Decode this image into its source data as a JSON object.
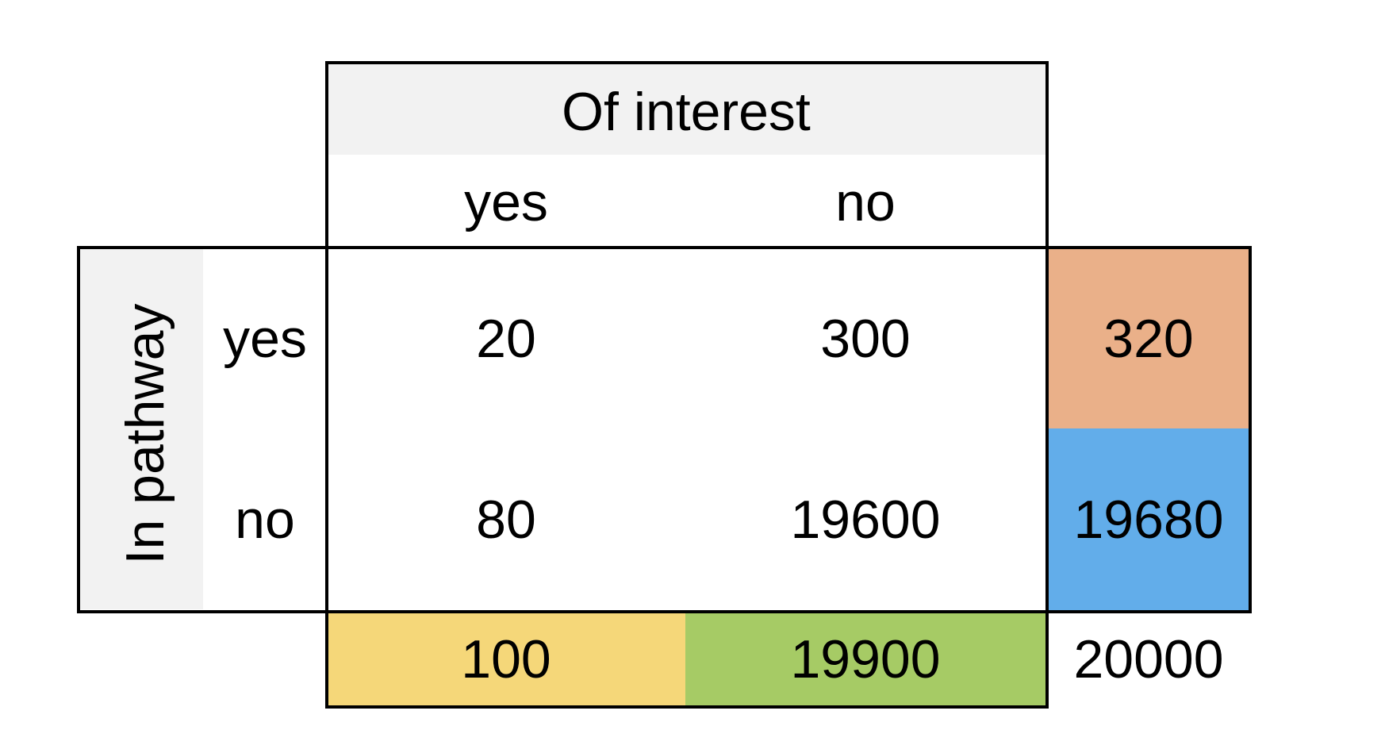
{
  "table": {
    "column_header": "Of interest",
    "row_header": "In pathway",
    "col_labels": [
      "yes",
      "no"
    ],
    "row_labels": [
      "yes",
      "no"
    ],
    "cells": [
      [
        "20",
        "300"
      ],
      [
        "80",
        "19600"
      ]
    ],
    "row_totals": [
      "320",
      "19680"
    ],
    "col_totals": [
      "100",
      "19900"
    ],
    "grand_total": "20000"
  },
  "colors": {
    "header_bg": "#f2f2f2",
    "row_total_yes": "#eab089",
    "row_total_no": "#62adea",
    "col_total_yes": "#f5d779",
    "col_total_no": "#a6cb65"
  }
}
